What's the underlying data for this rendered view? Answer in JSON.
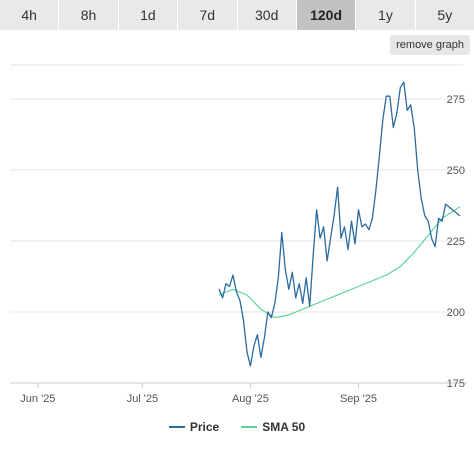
{
  "tabs": [
    {
      "label": "4h",
      "active": false
    },
    {
      "label": "8h",
      "active": false
    },
    {
      "label": "1d",
      "active": false
    },
    {
      "label": "7d",
      "active": false
    },
    {
      "label": "30d",
      "active": false
    },
    {
      "label": "120d",
      "active": true
    },
    {
      "label": "1y",
      "active": false
    },
    {
      "label": "5y",
      "active": false
    }
  ],
  "remove_graph_label": "remove graph",
  "colors": {
    "price": "#2c6b9e",
    "sma": "#5fd39a",
    "grid": "#e6e6e6",
    "axis": "#cccccc",
    "tick_text": "#555555"
  },
  "chart_data": {
    "type": "line",
    "x_axis": {
      "type": "date",
      "min": "2025-05-24",
      "max": "2025-10-01",
      "ticks": [
        {
          "label": "Jun '25",
          "date": "2025-06-01"
        },
        {
          "label": "Jul '25",
          "date": "2025-07-01"
        },
        {
          "label": "Aug '25",
          "date": "2025-08-01"
        },
        {
          "label": "Sep '25",
          "date": "2025-09-01"
        }
      ]
    },
    "y_axis": {
      "ylim": [
        175,
        287
      ],
      "ticks": [
        175,
        200,
        225,
        250,
        275
      ],
      "position": "right"
    },
    "grid": true,
    "legend_position": "bottom",
    "series": [
      {
        "name": "Price",
        "color": "#2c6b9e",
        "x": [
          "2025-07-23",
          "2025-07-24",
          "2025-07-25",
          "2025-07-26",
          "2025-07-27",
          "2025-07-28",
          "2025-07-29",
          "2025-07-30",
          "2025-07-31",
          "2025-08-01",
          "2025-08-02",
          "2025-08-03",
          "2025-08-04",
          "2025-08-05",
          "2025-08-06",
          "2025-08-07",
          "2025-08-08",
          "2025-08-09",
          "2025-08-10",
          "2025-08-11",
          "2025-08-12",
          "2025-08-13",
          "2025-08-14",
          "2025-08-15",
          "2025-08-16",
          "2025-08-17",
          "2025-08-18",
          "2025-08-19",
          "2025-08-20",
          "2025-08-21",
          "2025-08-22",
          "2025-08-23",
          "2025-08-24",
          "2025-08-25",
          "2025-08-26",
          "2025-08-27",
          "2025-08-28",
          "2025-08-29",
          "2025-08-30",
          "2025-08-31",
          "2025-09-01",
          "2025-09-02",
          "2025-09-03",
          "2025-09-04",
          "2025-09-05",
          "2025-09-06",
          "2025-09-07",
          "2025-09-08",
          "2025-09-09",
          "2025-09-10",
          "2025-09-11",
          "2025-09-12",
          "2025-09-13",
          "2025-09-14",
          "2025-09-15",
          "2025-09-16",
          "2025-09-17",
          "2025-09-18",
          "2025-09-19",
          "2025-09-20",
          "2025-09-21",
          "2025-09-22",
          "2025-09-23",
          "2025-09-24",
          "2025-09-25",
          "2025-09-26",
          "2025-09-27",
          "2025-09-28",
          "2025-09-29",
          "2025-09-30"
        ],
        "values": [
          208,
          205,
          210,
          209,
          213,
          207,
          204,
          197,
          186,
          181,
          188,
          192,
          184,
          191,
          200,
          198,
          203,
          212,
          228,
          215,
          208,
          214,
          205,
          210,
          203,
          212,
          202,
          220,
          236,
          226,
          230,
          218,
          226,
          234,
          244,
          226,
          230,
          222,
          232,
          224,
          236,
          230,
          231,
          229,
          233,
          243,
          255,
          268,
          276,
          276,
          265,
          270,
          279,
          281,
          271,
          273,
          265,
          250,
          240,
          234,
          232,
          226,
          223,
          233,
          232,
          238,
          237,
          236,
          235,
          234
        ]
      },
      {
        "name": "SMA 50",
        "color": "#5fd39a",
        "x": [
          "2025-07-23",
          "2025-07-27",
          "2025-07-31",
          "2025-08-04",
          "2025-08-08",
          "2025-08-12",
          "2025-08-16",
          "2025-08-20",
          "2025-08-24",
          "2025-08-28",
          "2025-09-01",
          "2025-09-05",
          "2025-09-09",
          "2025-09-13",
          "2025-09-17",
          "2025-09-21",
          "2025-09-25",
          "2025-09-30"
        ],
        "values": [
          206,
          208,
          206,
          201,
          198,
          199,
          201,
          203,
          205,
          207,
          209,
          211,
          213,
          216,
          221,
          227,
          233,
          237
        ]
      }
    ]
  }
}
